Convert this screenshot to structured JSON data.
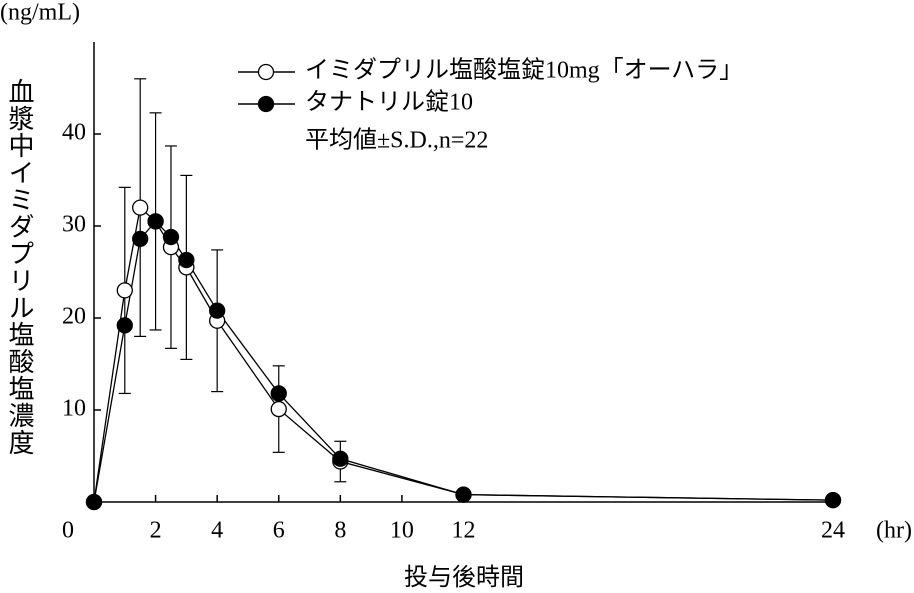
{
  "chart_data": {
    "type": "line",
    "y_unit": "(ng/mL)",
    "x_unit": "(hr)",
    "x_label": "投与後時間",
    "y_label": "血漿中イミダプリル塩酸塩濃度",
    "note": "平均値±S.D.,n=22",
    "x": [
      0,
      1,
      1.5,
      2,
      2.5,
      3,
      4,
      6,
      8,
      12,
      24
    ],
    "xlim": [
      0,
      24
    ],
    "xticks": [
      0,
      2,
      4,
      6,
      8,
      10,
      12,
      24
    ],
    "ylim": [
      0,
      50
    ],
    "yticks": [
      10,
      20,
      30,
      40
    ],
    "series": [
      {
        "name": "イミダプリル塩酸塩錠10mg「オーハラ」",
        "color": "#000000",
        "marker": "open",
        "values": [
          0,
          23,
          32,
          30.5,
          27.7,
          25.5,
          19.7,
          10.1,
          4.4,
          0.8,
          0.2
        ],
        "errors": [
          null,
          11.2,
          14,
          11.8,
          11,
          10,
          7.7,
          4.7,
          2.2,
          null,
          null
        ]
      },
      {
        "name": "タナトリル錠10",
        "color": "#000000",
        "marker": "filled",
        "values": [
          0,
          19.2,
          28.6,
          30.5,
          28.8,
          26.3,
          20.8,
          11.8,
          4.7,
          0.8,
          0.2
        ]
      }
    ]
  }
}
